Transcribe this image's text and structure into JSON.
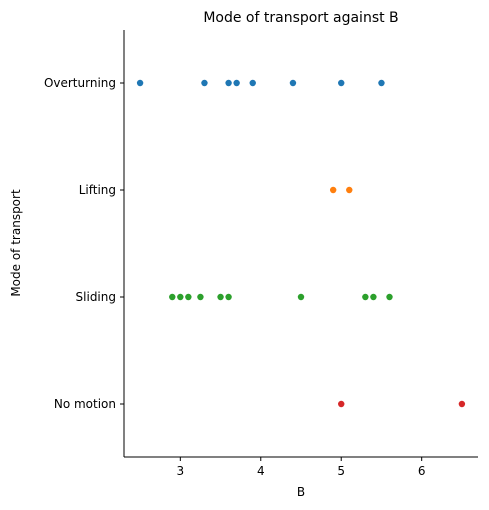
{
  "chart_data": {
    "type": "scatter",
    "title": "Mode of transport against B",
    "xlabel": "B",
    "ylabel": "Mode of transport",
    "xlim": [
      2.3,
      6.7
    ],
    "xticks": [
      3,
      4,
      5,
      6
    ],
    "xtick_labels": [
      "3",
      "4",
      "5",
      "6"
    ],
    "categories": [
      "Overturning",
      "Lifting",
      "Sliding",
      "No motion"
    ],
    "grid": false,
    "legend": "none",
    "series": [
      {
        "category": "Overturning",
        "color": "#1f77b4",
        "x": [
          2.5,
          3.3,
          3.6,
          3.7,
          3.9,
          4.4,
          5.0,
          5.5
        ]
      },
      {
        "category": "Lifting",
        "color": "#ff7f0e",
        "x": [
          4.9,
          5.1
        ]
      },
      {
        "category": "Sliding",
        "color": "#2ca02c",
        "x": [
          2.9,
          3.0,
          3.1,
          3.25,
          3.5,
          3.6,
          4.5,
          5.3,
          5.4,
          5.6
        ]
      },
      {
        "category": "No motion",
        "color": "#d62728",
        "x": [
          5.0,
          6.5
        ]
      }
    ]
  }
}
